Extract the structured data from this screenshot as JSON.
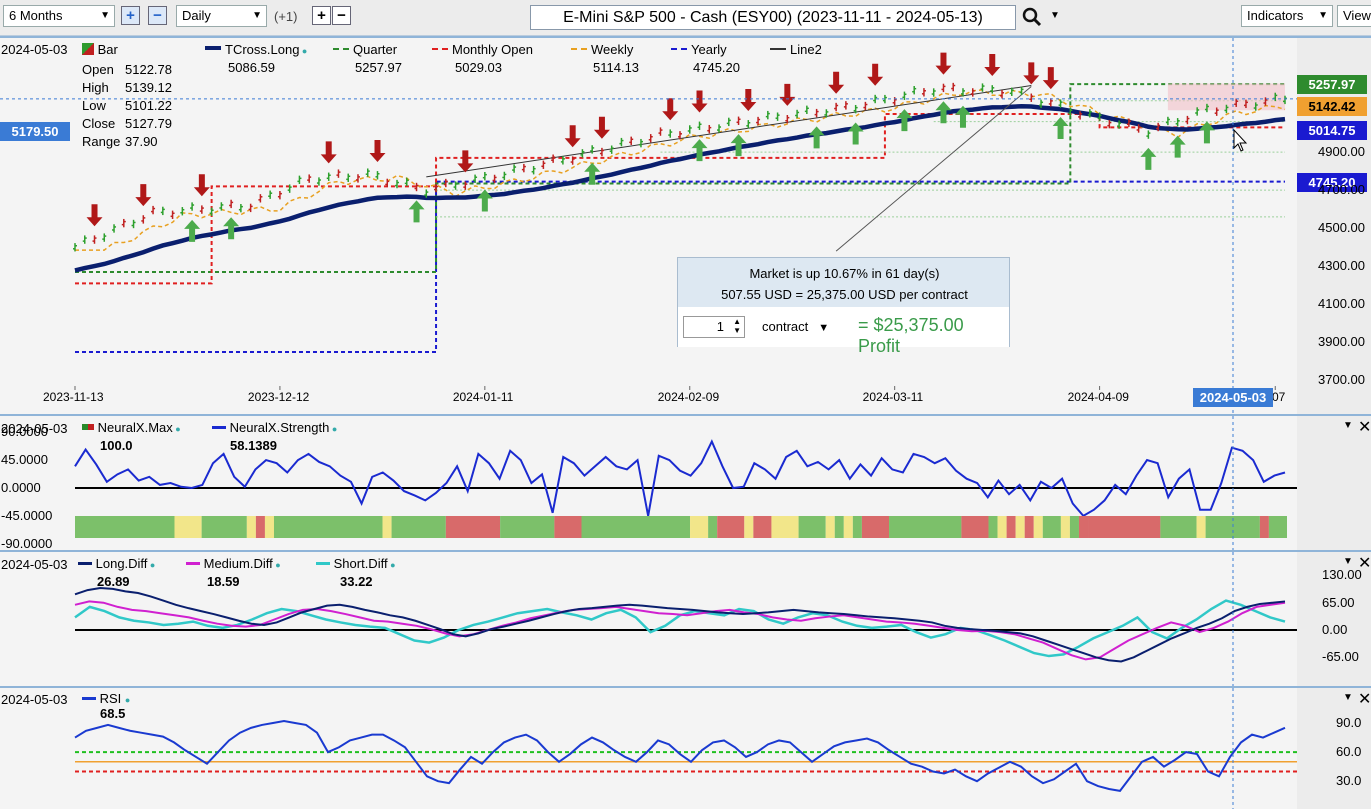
{
  "toolbar": {
    "range": "6 Months",
    "interval": "Daily",
    "offset": "(+1)",
    "title": "E-Mini S&P 500 - Cash (ESY00) (2023-11-11 - 2024-05-13)",
    "indicators": "Indicators",
    "view": "View"
  },
  "main": {
    "date": "2024-05-03",
    "bar_label": "Bar",
    "ohlc": [
      {
        "label": "Open",
        "value": "5122.78"
      },
      {
        "label": "High",
        "value": "5139.12"
      },
      {
        "label": "Low",
        "value": "5101.22"
      },
      {
        "label": "Close",
        "value": "5127.79"
      },
      {
        "label": "Range",
        "value": "37.90"
      }
    ],
    "legend": [
      {
        "name": "TCross.Long",
        "value": "5086.59",
        "color": "#0a1f6e"
      },
      {
        "name": "Quarter",
        "value": "5257.97",
        "color": "#2e8b2e"
      },
      {
        "name": "Monthly Open",
        "value": "5029.03",
        "color": "#e02020"
      },
      {
        "name": "Weekly",
        "value": "5114.13",
        "color": "#e8a020"
      },
      {
        "name": "Yearly",
        "value": "4745.20",
        "color": "#1a1ad0"
      },
      {
        "name": "Line2",
        "value": "",
        "color": "#333333"
      }
    ],
    "cursor_price": "5179.50",
    "cursor_date": "2024-05-03",
    "price_tags": [
      {
        "value": "5257.97",
        "bg": "#2e8b2e",
        "fg": "#ffffff"
      },
      {
        "value": "5142.42",
        "bg": "#f0a030",
        "fg": "#000000"
      },
      {
        "value": "5014.75",
        "bg": "#1a1ad0",
        "fg": "#ffffff"
      },
      {
        "value": "4745.20",
        "bg": "#1a1ad0",
        "fg": "#ffffff"
      }
    ],
    "price_ticks": [
      "4900.00",
      "4700.00",
      "4500.00",
      "4300.00",
      "4100.00",
      "3900.00",
      "3700.00"
    ],
    "date_ticks": [
      "2023-11-13",
      "2023-12-12",
      "2024-01-11",
      "2024-02-09",
      "2024-03-11",
      "2024-04-09",
      "07"
    ]
  },
  "popup": {
    "line1": "Market is up 10.67% in 61 day(s)",
    "line2": "507.55 USD = 25,375.00 USD per contract",
    "quantity": "1",
    "unit": "contract",
    "profit": "= $25,375.00 Profit"
  },
  "neural": {
    "date": "2024-05-03",
    "legend": [
      {
        "name": "NeuralX.Max",
        "value": "100.0"
      },
      {
        "name": "NeuralX.Strength",
        "value": "58.1389"
      }
    ],
    "ticks": [
      "90.0000",
      "45.0000",
      "0.0000",
      "-45.0000",
      "-90.0000"
    ],
    "strength": [
      35,
      62,
      38,
      10,
      22,
      30,
      12,
      18,
      5,
      8,
      2,
      0,
      5,
      40,
      55,
      18,
      2,
      30,
      45,
      40,
      25,
      45,
      55,
      42,
      35,
      20,
      10,
      -25,
      18,
      25,
      12,
      -5,
      -12,
      -20,
      -8,
      8,
      35,
      -5,
      55,
      40,
      15,
      60,
      45,
      8,
      22,
      -40,
      50,
      40,
      20,
      35,
      50,
      35,
      30,
      45,
      -45,
      52,
      45,
      28,
      20,
      40,
      75,
      35,
      0,
      2,
      40,
      30,
      15,
      50,
      60,
      35,
      42,
      30,
      45,
      15,
      38,
      20,
      48,
      30,
      25,
      55,
      50,
      40,
      48,
      28,
      15,
      8,
      -15,
      12,
      -10,
      5,
      -20,
      10,
      0,
      15,
      -25,
      -45,
      -35,
      -20,
      5,
      -10,
      20,
      45,
      40,
      -15,
      15,
      30,
      -35,
      -35,
      8,
      65,
      60,
      45,
      10,
      20,
      25
    ],
    "blocks": [
      {
        "span": 11,
        "color": "green"
      },
      {
        "span": 3,
        "color": "yellow"
      },
      {
        "span": 5,
        "color": "green"
      },
      {
        "span": 1,
        "color": "yellow"
      },
      {
        "span": 1,
        "color": "red"
      },
      {
        "span": 1,
        "color": "yellow"
      },
      {
        "span": 12,
        "color": "green"
      },
      {
        "span": 1,
        "color": "yellow"
      },
      {
        "span": 6,
        "color": "green"
      },
      {
        "span": 6,
        "color": "red"
      },
      {
        "span": 6,
        "color": "green"
      },
      {
        "span": 3,
        "color": "red"
      },
      {
        "span": 12,
        "color": "green"
      },
      {
        "span": 2,
        "color": "yellow"
      },
      {
        "span": 1,
        "color": "green"
      },
      {
        "span": 3,
        "color": "red"
      },
      {
        "span": 1,
        "color": "yellow"
      },
      {
        "span": 2,
        "color": "red"
      },
      {
        "span": 3,
        "color": "yellow"
      },
      {
        "span": 3,
        "color": "green"
      },
      {
        "span": 1,
        "color": "yellow"
      },
      {
        "span": 1,
        "color": "green"
      },
      {
        "span": 1,
        "color": "yellow"
      },
      {
        "span": 1,
        "color": "green"
      },
      {
        "span": 3,
        "color": "red"
      },
      {
        "span": 8,
        "color": "green"
      },
      {
        "span": 3,
        "color": "red"
      },
      {
        "span": 1,
        "color": "green"
      },
      {
        "span": 1,
        "color": "yellow"
      },
      {
        "span": 1,
        "color": "red"
      },
      {
        "span": 1,
        "color": "yellow"
      },
      {
        "span": 1,
        "color": "red"
      },
      {
        "span": 1,
        "color": "yellow"
      },
      {
        "span": 2,
        "color": "green"
      },
      {
        "span": 1,
        "color": "yellow"
      },
      {
        "span": 1,
        "color": "green"
      },
      {
        "span": 1,
        "color": "red"
      },
      {
        "span": 8,
        "color": "red"
      },
      {
        "span": 4,
        "color": "green"
      },
      {
        "span": 1,
        "color": "yellow"
      },
      {
        "span": 6,
        "color": "green"
      },
      {
        "span": 1,
        "color": "red"
      },
      {
        "span": 2,
        "color": "green"
      }
    ]
  },
  "diff": {
    "date": "2024-05-03",
    "legend": [
      {
        "name": "Long.Diff",
        "value": "26.89",
        "color": "#0a1f6e"
      },
      {
        "name": "Medium.Diff",
        "value": "18.59",
        "color": "#d020d0"
      },
      {
        "name": "Short.Diff",
        "value": "33.22",
        "color": "#30c8c8"
      }
    ],
    "ticks": [
      "130.00",
      "65.00",
      "0.00",
      "-65.00"
    ],
    "long": [
      85,
      95,
      100,
      98,
      92,
      88,
      80,
      70,
      60,
      52,
      45,
      38,
      30,
      22,
      15,
      12,
      18,
      30,
      42,
      50,
      58,
      60,
      55,
      48,
      42,
      35,
      30,
      22,
      12,
      2,
      -10,
      -15,
      -8,
      2,
      8,
      15,
      22,
      30,
      38,
      45,
      50,
      52,
      55,
      58,
      60,
      58,
      55,
      52,
      50,
      48,
      45,
      42,
      40,
      38,
      40,
      42,
      45,
      48,
      45,
      42,
      40,
      38,
      35,
      32,
      30,
      28,
      25,
      22,
      18,
      10,
      5,
      2,
      0,
      -2,
      -5,
      -8,
      -15,
      -25,
      -35,
      -45,
      -55,
      -65,
      -72,
      -75,
      -65,
      -50,
      -35,
      -20,
      -8,
      5,
      15,
      28,
      45,
      55,
      62,
      65,
      68
    ],
    "medium": [
      60,
      68,
      65,
      55,
      48,
      45,
      40,
      35,
      30,
      22,
      15,
      10,
      8,
      12,
      25,
      38,
      48,
      50,
      45,
      38,
      30,
      22,
      20,
      15,
      10,
      2,
      -8,
      -15,
      -10,
      0,
      10,
      18,
      28,
      35,
      42,
      48,
      50,
      52,
      55,
      50,
      45,
      40,
      38,
      35,
      40,
      45,
      48,
      42,
      38,
      30,
      25,
      22,
      28,
      32,
      35,
      30,
      25,
      20,
      18,
      15,
      10,
      5,
      0,
      -3,
      -2,
      -5,
      -10,
      -20,
      -30,
      -45,
      -60,
      -70,
      -65,
      -45,
      -25,
      -10,
      5,
      18,
      10,
      -5,
      5,
      20,
      40,
      55,
      60,
      65
    ],
    "short": [
      30,
      55,
      45,
      30,
      22,
      18,
      12,
      15,
      20,
      10,
      5,
      12,
      25,
      40,
      50,
      45,
      35,
      25,
      18,
      12,
      8,
      5,
      -10,
      -25,
      -30,
      -18,
      0,
      12,
      20,
      30,
      40,
      45,
      50,
      42,
      35,
      25,
      40,
      48,
      30,
      -5,
      10,
      35,
      45,
      40,
      35,
      50,
      45,
      25,
      15,
      30,
      40,
      35,
      20,
      10,
      5,
      8,
      12,
      -5,
      -18,
      -10,
      5,
      0,
      -12,
      -25,
      -40,
      -55,
      -62,
      -58,
      -40,
      -20,
      -5,
      10,
      30,
      -5,
      -20,
      5,
      25,
      50,
      70,
      60,
      45,
      30,
      20
    ]
  },
  "rsi": {
    "date": "2024-05-03",
    "legend": {
      "name": "RSI",
      "value": "68.5"
    },
    "ticks": [
      "90.0",
      "60.0",
      "30.0"
    ],
    "values": [
      75,
      82,
      85,
      88,
      85,
      82,
      80,
      78,
      76,
      70,
      62,
      55,
      48,
      60,
      72,
      80,
      85,
      88,
      90,
      92,
      90,
      88,
      80,
      60,
      65,
      72,
      75,
      78,
      78,
      72,
      65,
      50,
      35,
      30,
      28,
      42,
      55,
      48,
      60,
      70,
      75,
      78,
      72,
      60,
      50,
      58,
      68,
      75,
      70,
      62,
      55,
      50,
      60,
      72,
      68,
      58,
      50,
      62,
      70,
      72,
      65,
      55,
      60,
      68,
      72,
      70,
      60,
      50,
      58,
      66,
      70,
      72,
      74,
      70,
      62,
      55,
      48,
      45,
      40,
      38,
      42,
      35,
      30,
      38,
      44,
      50,
      45,
      35,
      28,
      32,
      40,
      48,
      30,
      25,
      22,
      20,
      35,
      50,
      55,
      45,
      52,
      60,
      58,
      40,
      35,
      55,
      70,
      78,
      75,
      80,
      85
    ]
  }
}
